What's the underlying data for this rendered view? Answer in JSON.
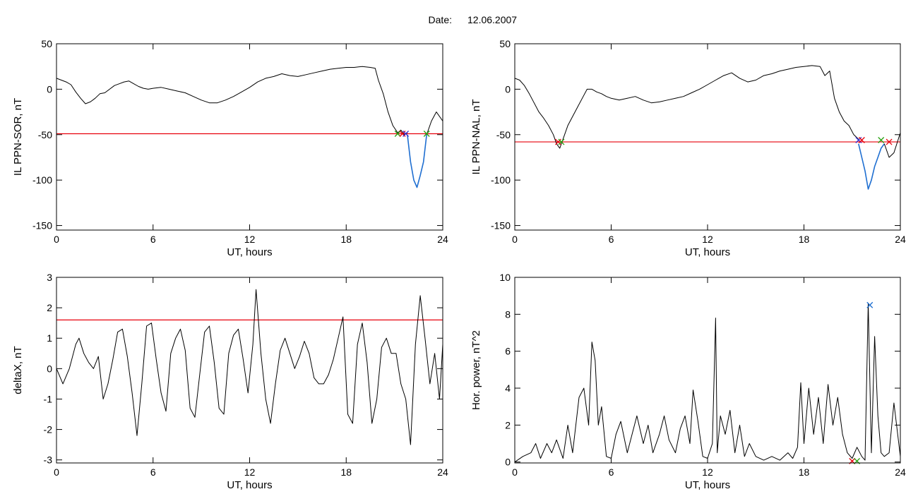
{
  "header": {
    "date_label": "Date:",
    "date_value": "12.06.2007"
  },
  "chart_data": [
    {
      "id": "sor",
      "type": "line",
      "ylabel": "IL PPN-SOR, nT",
      "xlabel": "UT, hours",
      "xlim": [
        0,
        24
      ],
      "ylim": [
        -155,
        50
      ],
      "xticks": [
        0,
        6,
        12,
        18,
        24
      ],
      "yticks": [
        -150,
        -100,
        -50,
        0,
        50
      ],
      "threshold": -49,
      "threshold_color": "#e8000b",
      "line_color": "#000000",
      "highlight_color": "#1f6fd1",
      "series": [
        {
          "x": [
            0,
            0.3,
            0.6,
            0.9,
            1.2,
            1.5,
            1.8,
            2.1,
            2.4,
            2.7,
            3.0,
            3.3,
            3.6,
            3.9,
            4.2,
            4.5,
            4.8,
            5.1,
            5.4,
            5.7,
            6.0,
            6.5,
            7.0,
            7.5,
            8.0,
            8.5,
            9.0,
            9.5,
            10.0,
            10.5,
            11.0,
            11.5,
            12.0,
            12.5,
            13.0,
            13.5,
            14.0,
            14.5,
            15.0,
            15.5,
            16.0,
            16.5,
            17.0,
            17.5,
            18.0,
            18.5,
            19.0,
            19.5,
            19.8,
            20.0,
            20.3,
            20.6,
            20.9,
            21.2,
            21.4,
            21.6,
            21.8
          ],
          "y": [
            12,
            10,
            8,
            5,
            -3,
            -10,
            -16,
            -14,
            -10,
            -5,
            -4,
            0,
            4,
            6,
            8,
            9,
            6,
            3,
            1,
            0,
            1,
            2,
            0,
            -2,
            -4,
            -8,
            -12,
            -15,
            -15,
            -12,
            -8,
            -3,
            2,
            8,
            12,
            14,
            17,
            15,
            14,
            16,
            18,
            20,
            22,
            23,
            24,
            24,
            25,
            24,
            23,
            10,
            -5,
            -25,
            -40,
            -48,
            -45,
            -50,
            -48
          ]
        }
      ],
      "highlight": {
        "x": [
          21.8,
          22.0,
          22.2,
          22.4,
          22.6,
          22.8,
          23.0
        ],
        "y": [
          -50,
          -80,
          -100,
          -108,
          -95,
          -80,
          -50
        ]
      },
      "tail": {
        "x": [
          23.0,
          23.3,
          23.6,
          24.0
        ],
        "y": [
          -50,
          -35,
          -25,
          -35
        ]
      },
      "markers": [
        {
          "x": 21.2,
          "y": -49,
          "color": "#27a10f"
        },
        {
          "x": 21.5,
          "y": -49,
          "color": "#e8000b"
        },
        {
          "x": 21.7,
          "y": -49,
          "color": "#3a2fd0"
        },
        {
          "x": 23.0,
          "y": -49,
          "color": "#27a10f"
        }
      ]
    },
    {
      "id": "nal",
      "type": "line",
      "ylabel": "IL PPN-NAL, nT",
      "xlabel": "UT, hours",
      "xlim": [
        0,
        24
      ],
      "ylim": [
        -155,
        50
      ],
      "xticks": [
        0,
        6,
        12,
        18,
        24
      ],
      "yticks": [
        -150,
        -100,
        -50,
        0,
        50
      ],
      "threshold": -58,
      "threshold_color": "#e8000b",
      "line_color": "#000000",
      "highlight_color": "#1f6fd1",
      "series": [
        {
          "x": [
            0,
            0.3,
            0.6,
            0.9,
            1.2,
            1.5,
            1.8,
            2.1,
            2.4,
            2.6,
            2.8,
            3.0,
            3.3,
            3.6,
            3.9,
            4.2,
            4.5,
            4.8,
            5.1,
            5.4,
            5.7,
            6.0,
            6.5,
            7.0,
            7.5,
            8.0,
            8.5,
            9.0,
            9.5,
            10.0,
            10.5,
            11.0,
            11.5,
            12.0,
            12.5,
            13.0,
            13.5,
            14.0,
            14.5,
            15.0,
            15.5,
            16.0,
            16.5,
            17.0,
            17.5,
            18.0,
            18.5,
            19.0,
            19.3,
            19.6,
            19.9,
            20.2,
            20.5,
            20.8,
            21.1,
            21.4
          ],
          "y": [
            12,
            10,
            4,
            -5,
            -15,
            -25,
            -32,
            -40,
            -50,
            -60,
            -65,
            -55,
            -40,
            -30,
            -20,
            -10,
            0,
            0,
            -3,
            -5,
            -8,
            -10,
            -12,
            -10,
            -8,
            -12,
            -15,
            -14,
            -12,
            -10,
            -8,
            -4,
            0,
            5,
            10,
            15,
            18,
            12,
            8,
            10,
            15,
            17,
            20,
            22,
            24,
            25,
            26,
            25,
            15,
            20,
            -10,
            -25,
            -35,
            -40,
            -50,
            -55
          ]
        }
      ],
      "highlight": {
        "x": [
          21.4,
          21.6,
          21.8,
          22.0,
          22.2,
          22.4,
          22.6,
          22.8,
          23.0
        ],
        "y": [
          -60,
          -75,
          -90,
          -110,
          -100,
          -85,
          -75,
          -65,
          -60
        ]
      },
      "tail": {
        "x": [
          23.0,
          23.3,
          23.6,
          24.0
        ],
        "y": [
          -60,
          -75,
          -70,
          -48
        ]
      },
      "markers": [
        {
          "x": 2.7,
          "y": -58,
          "color": "#e8000b"
        },
        {
          "x": 2.9,
          "y": -58,
          "color": "#27a10f"
        },
        {
          "x": 21.4,
          "y": -56,
          "color": "#3a2fd0"
        },
        {
          "x": 21.6,
          "y": -56,
          "color": "#e8000b"
        },
        {
          "x": 22.8,
          "y": -56,
          "color": "#27a10f"
        },
        {
          "x": 23.3,
          "y": -58,
          "color": "#e8000b"
        }
      ]
    },
    {
      "id": "deltax",
      "type": "line",
      "ylabel": "deltaX, nT",
      "xlabel": "UT, hours",
      "xlim": [
        0,
        24
      ],
      "ylim": [
        -3.1,
        3
      ],
      "xticks": [
        0,
        6,
        12,
        18,
        24
      ],
      "yticks": [
        -3,
        -2,
        -1,
        0,
        1,
        2,
        3
      ],
      "threshold": 1.6,
      "threshold_color": "#e8000b",
      "line_color": "#000000",
      "series": [
        {
          "x": [
            0,
            0.4,
            0.8,
            1.2,
            1.4,
            1.7,
            2.0,
            2.3,
            2.6,
            2.9,
            3.2,
            3.5,
            3.8,
            4.1,
            4.4,
            4.7,
            5.0,
            5.3,
            5.6,
            5.9,
            6.2,
            6.5,
            6.8,
            7.1,
            7.4,
            7.7,
            8.0,
            8.3,
            8.6,
            8.9,
            9.2,
            9.5,
            9.8,
            10.1,
            10.4,
            10.7,
            11.0,
            11.3,
            11.6,
            11.9,
            12.2,
            12.4,
            12.7,
            13.0,
            13.3,
            13.6,
            13.9,
            14.2,
            14.5,
            14.8,
            15.1,
            15.4,
            15.7,
            16.0,
            16.3,
            16.6,
            16.9,
            17.2,
            17.5,
            17.8,
            18.1,
            18.4,
            18.7,
            19.0,
            19.3,
            19.6,
            19.9,
            20.2,
            20.5,
            20.8,
            21.1,
            21.4,
            21.7,
            22.0,
            22.3,
            22.6,
            22.9,
            23.2,
            23.5,
            23.8,
            24.0
          ],
          "y": [
            0,
            -0.5,
            0,
            0.8,
            1.0,
            0.5,
            0.2,
            0,
            0.4,
            -1.0,
            -0.5,
            0.3,
            1.2,
            1.3,
            0.4,
            -0.8,
            -2.2,
            -0.5,
            1.4,
            1.5,
            0.3,
            -0.8,
            -1.4,
            0.5,
            1.0,
            1.3,
            0.6,
            -1.3,
            -1.6,
            -0.2,
            1.2,
            1.4,
            0.2,
            -1.3,
            -1.5,
            0.5,
            1.1,
            1.3,
            0.3,
            -0.8,
            0.8,
            2.6,
            0.5,
            -1.0,
            -1.8,
            -0.5,
            0.6,
            1.0,
            0.5,
            0,
            0.4,
            0.9,
            0.5,
            -0.3,
            -0.5,
            -0.5,
            -0.2,
            0.3,
            1.0,
            1.7,
            -1.5,
            -1.8,
            0.8,
            1.5,
            0.2,
            -1.8,
            -1.0,
            0.7,
            1.0,
            0.5,
            0.5,
            -0.5,
            -1.0,
            -2.5,
            0.8,
            2.4,
            1.0,
            -0.5,
            0.5,
            -1.0,
            0.8
          ]
        }
      ]
    },
    {
      "id": "power",
      "type": "line",
      "ylabel": "Hor. power, nT^2",
      "xlabel": "UT, hours",
      "xlim": [
        0,
        24
      ],
      "ylim": [
        -0.05,
        10
      ],
      "xticks": [
        0,
        6,
        12,
        18,
        24
      ],
      "yticks": [
        0,
        2,
        4,
        6,
        8,
        10
      ],
      "line_color": "#000000",
      "series": [
        {
          "x": [
            0,
            0.5,
            1.0,
            1.3,
            1.6,
            2.0,
            2.3,
            2.6,
            3.0,
            3.3,
            3.6,
            4.0,
            4.3,
            4.6,
            4.8,
            5.0,
            5.2,
            5.4,
            5.7,
            6.0,
            6.3,
            6.6,
            7.0,
            7.3,
            7.6,
            8.0,
            8.3,
            8.6,
            9.0,
            9.3,
            9.6,
            10.0,
            10.3,
            10.6,
            10.9,
            11.1,
            11.4,
            11.7,
            12.0,
            12.3,
            12.5,
            12.6,
            12.8,
            13.1,
            13.4,
            13.7,
            14.0,
            14.3,
            14.6,
            15.0,
            15.5,
            16.0,
            16.5,
            17.0,
            17.3,
            17.6,
            17.8,
            18.0,
            18.3,
            18.6,
            18.9,
            19.2,
            19.5,
            19.8,
            20.1,
            20.4,
            20.7,
            21.0,
            21.3,
            21.6,
            21.8,
            22.0,
            22.2,
            22.4,
            22.6,
            22.8,
            23.0,
            23.3,
            23.6,
            24.0
          ],
          "y": [
            0,
            0.3,
            0.5,
            1.0,
            0.2,
            1.0,
            0.5,
            1.2,
            0.2,
            2.0,
            0.5,
            3.5,
            4.0,
            2.0,
            6.5,
            5.5,
            2.0,
            3.0,
            0.3,
            0.2,
            1.5,
            2.2,
            0.5,
            1.5,
            2.5,
            1.0,
            2.0,
            0.5,
            1.5,
            2.5,
            1.2,
            0.5,
            1.8,
            2.5,
            1.0,
            3.9,
            2.2,
            0.3,
            0.2,
            1.0,
            7.8,
            0.5,
            2.5,
            1.5,
            2.8,
            0.5,
            2.0,
            0.3,
            1.0,
            0.3,
            0.1,
            0.3,
            0.1,
            0.5,
            0.2,
            0.8,
            4.3,
            1.0,
            4.0,
            1.5,
            3.5,
            1.0,
            4.2,
            2.0,
            3.5,
            1.5,
            0.5,
            0.2,
            0.8,
            0.3,
            0.1,
            8.6,
            0.5,
            6.8,
            2.5,
            0.5,
            0.3,
            0.5,
            3.2,
            0.3
          ]
        }
      ],
      "markers": [
        {
          "x": 21.0,
          "y": 0.05,
          "color": "#e8000b"
        },
        {
          "x": 21.3,
          "y": 0.05,
          "color": "#27a10f"
        },
        {
          "x": 22.1,
          "y": 8.5,
          "color": "#1f6fd1"
        }
      ]
    }
  ]
}
